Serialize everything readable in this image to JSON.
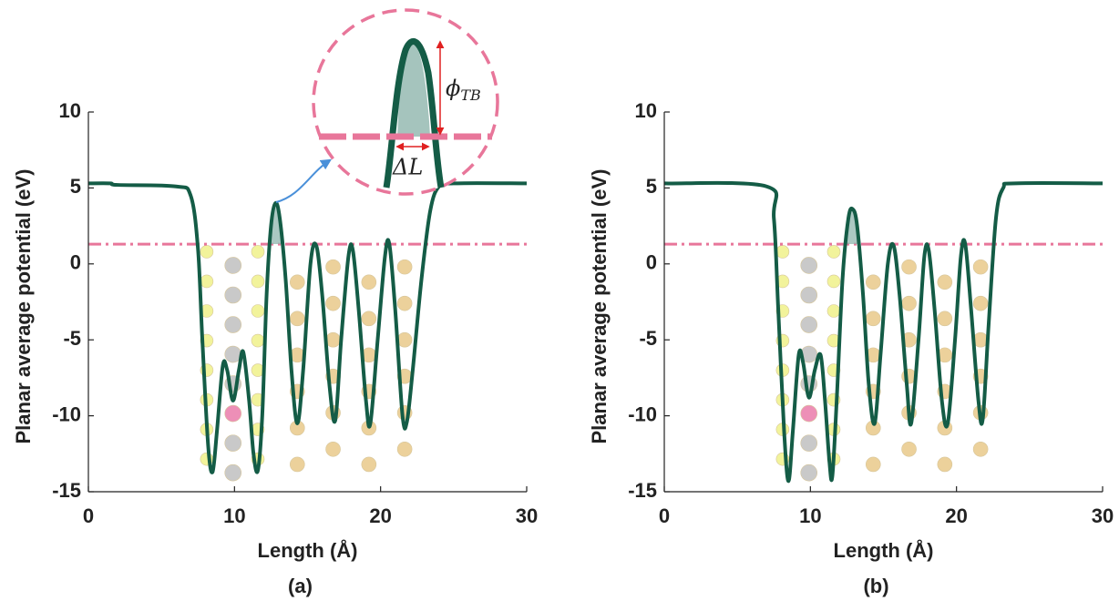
{
  "chart_data": [
    {
      "type": "line",
      "caption": "(a)",
      "xlabel": "Length (Å)",
      "ylabel": "Planar average potential (eV)",
      "xlim": [
        0,
        30
      ],
      "ylim": [
        -15,
        10
      ],
      "xticks": [
        0,
        10,
        20,
        30
      ],
      "yticks": [
        -15,
        -10,
        -5,
        0,
        5,
        10
      ],
      "x": [
        0,
        1.5,
        2,
        6,
        7,
        7.5,
        7.8,
        8.2,
        8.5,
        8.8,
        9.2,
        9.5,
        9.9,
        10.3,
        10.6,
        11,
        11.3,
        11.6,
        11.9,
        12.2,
        12.5,
        12.8,
        13.1,
        13.5,
        13.9,
        14.3,
        14.7,
        15.2,
        15.6,
        16,
        16.5,
        16.9,
        17.3,
        17.8,
        18.1,
        18.5,
        19,
        19.3,
        19.8,
        20.3,
        20.6,
        21,
        21.5,
        21.8,
        22.2,
        22.8,
        23.4,
        24,
        25,
        30
      ],
      "series": [
        {
          "color": "#145c46",
          "values": [
            5.3,
            5.3,
            5.2,
            5.1,
            4.5,
            1,
            -5,
            -12,
            -13.7,
            -11,
            -6.7,
            -7,
            -9,
            -7,
            -5.8,
            -9,
            -12.5,
            -13.6,
            -10,
            -2,
            2.5,
            4,
            3,
            -1,
            -7,
            -10.5,
            -7,
            0,
            1.2,
            -2,
            -8,
            -10.3,
            -5,
            0.5,
            0.9,
            -3,
            -9,
            -10.5,
            -5,
            0.5,
            1.3,
            -3,
            -10,
            -10.4,
            -7,
            -1,
            3.5,
            5.1,
            5.3,
            5.3
          ]
        }
      ],
      "hline": {
        "value": 1.3,
        "color": "#e8769a"
      },
      "annotations": [
        {
          "text": "ϕ",
          "sub": "TB"
        },
        {
          "text": "ΔL"
        }
      ]
    },
    {
      "type": "line",
      "caption": "(b)",
      "xlabel": "Length (Å)",
      "ylabel": "Planar average potential (eV)",
      "xlim": [
        0,
        30
      ],
      "ylim": [
        -15,
        10
      ],
      "xticks": [
        0,
        10,
        20,
        30
      ],
      "yticks": [
        -15,
        -10,
        -5,
        0,
        5,
        10
      ],
      "x": [
        0,
        7,
        7.5,
        7.8,
        8.2,
        8.5,
        8.8,
        9.2,
        9.5,
        9.9,
        10.3,
        10.7,
        11,
        11.3,
        11.5,
        11.8,
        12.2,
        12.6,
        12.9,
        13.2,
        13.6,
        14,
        14.4,
        14.8,
        15.3,
        15.7,
        16.1,
        16.6,
        16.9,
        17.4,
        17.8,
        18.1,
        18.5,
        19,
        19.4,
        19.9,
        20.3,
        20.6,
        21,
        21.5,
        21.8,
        22.2,
        22.7,
        23.2,
        24,
        30
      ],
      "series": [
        {
          "color": "#145c46",
          "values": [
            5.3,
            5.1,
            3,
            -3,
            -11,
            -14.3,
            -11,
            -6,
            -6.5,
            -8.8,
            -7,
            -6,
            -9,
            -13,
            -14,
            -9,
            -1,
            3,
            3.6,
            2.5,
            -2,
            -8,
            -10.5,
            -6,
            0,
            1.2,
            -2,
            -8,
            -10.5,
            -5,
            0.5,
            0.9,
            -3,
            -9,
            -10.5,
            -5,
            0.5,
            1.3,
            -3,
            -9,
            -10.2,
            -4,
            3,
            5,
            5.3,
            5.3
          ]
        }
      ],
      "hline": {
        "value": 1.3,
        "color": "#e8769a"
      }
    }
  ]
}
